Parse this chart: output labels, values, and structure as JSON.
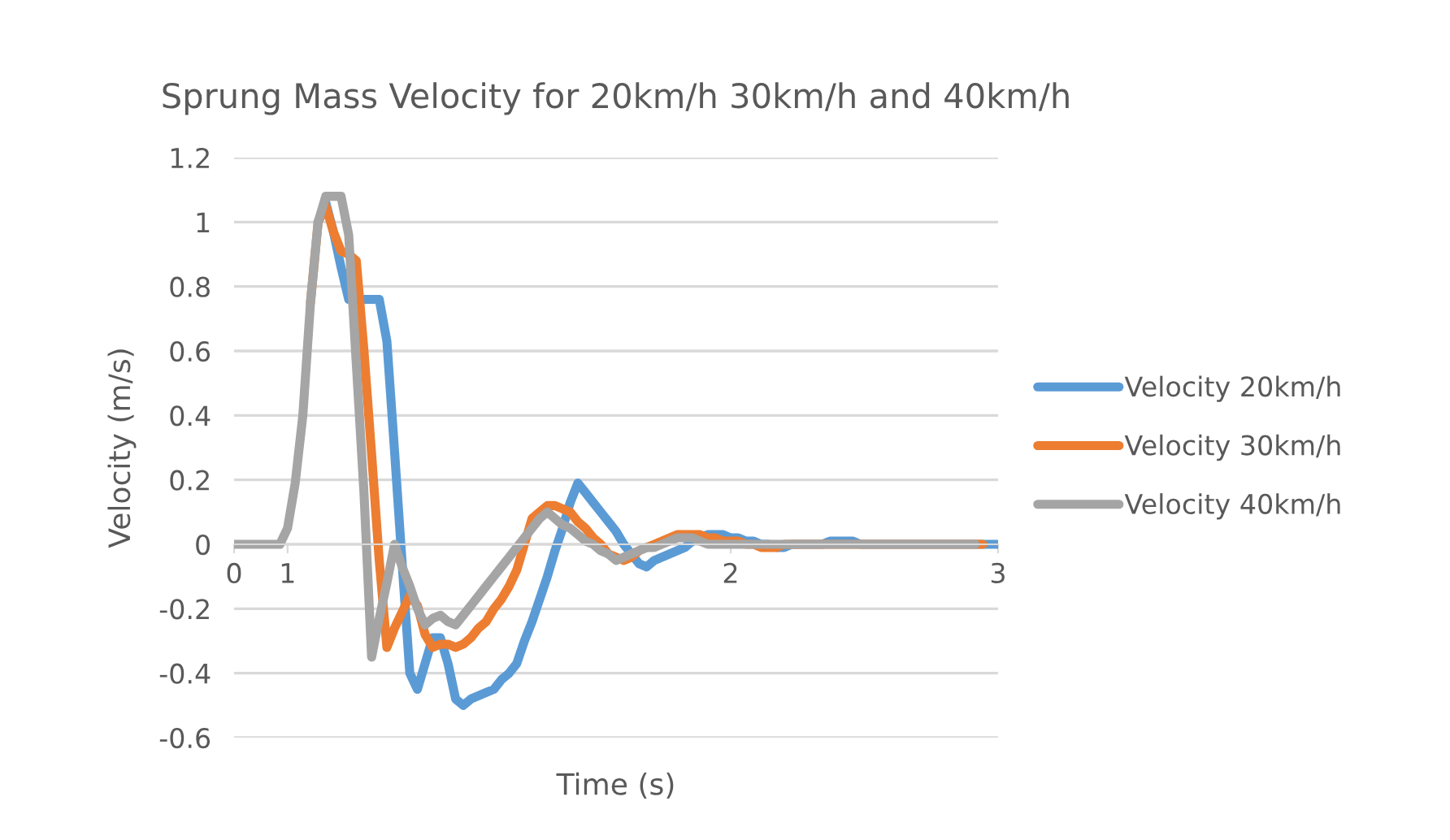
{
  "chart_data": {
    "type": "line",
    "title": "Sprung Mass Velocity for 20km/h 30km/h and 40km/h",
    "xlabel": "Time (s)",
    "ylabel": "Velocity (m/s)",
    "categories": [
      "0",
      null,
      null,
      null,
      null,
      null,
      null,
      "1",
      null,
      null,
      null,
      null,
      null,
      null,
      null,
      null,
      null,
      null,
      null,
      null,
      null,
      null,
      null,
      null,
      null,
      null,
      null,
      null,
      null,
      null,
      null,
      null,
      null,
      null,
      null,
      null,
      null,
      null,
      null,
      null,
      null,
      null,
      null,
      null,
      null,
      null,
      null,
      null,
      null,
      null,
      null,
      null,
      null,
      null,
      null,
      null,
      null,
      null,
      null,
      null,
      null,
      null,
      null,
      null,
      null,
      "2",
      null,
      null,
      null,
      null,
      null,
      null,
      null,
      null,
      null,
      null,
      null,
      null,
      null,
      null,
      null,
      null,
      null,
      null,
      null,
      null,
      null,
      null,
      null,
      null,
      null,
      null,
      null,
      null,
      null,
      null,
      null,
      null,
      null,
      null,
      "3"
    ],
    "ylim": [
      -0.6,
      1.2
    ],
    "yticks": [
      -0.6,
      -0.4,
      -0.2,
      0,
      0.2,
      0.4,
      0.6,
      0.8,
      1,
      1.2
    ],
    "grid": "y",
    "legend": "right",
    "marker": "none",
    "line_style": "solid",
    "series": [
      {
        "name": "Velocity 20km/h",
        "color": "#5b9bd5",
        "values": [
          null,
          null,
          null,
          null,
          null,
          null,
          null,
          null,
          null,
          null,
          null,
          1.0,
          1.06,
          0.97,
          0.86,
          0.76,
          0.76,
          0.76,
          0.76,
          0.76,
          0.63,
          0.29,
          -0.06,
          -0.4,
          -0.45,
          -0.37,
          -0.29,
          -0.29,
          -0.37,
          -0.48,
          -0.5,
          -0.48,
          -0.47,
          -0.46,
          -0.45,
          -0.42,
          -0.4,
          -0.37,
          -0.3,
          -0.24,
          -0.17,
          -0.1,
          -0.02,
          0.05,
          0.13,
          0.19,
          0.16,
          0.13,
          0.1,
          0.07,
          0.04,
          0,
          -0.03,
          -0.06,
          -0.07,
          -0.05,
          -0.04,
          -0.03,
          -0.02,
          -0.01,
          0.01,
          0.02,
          0.03,
          0.03,
          0.03,
          0.02,
          0.02,
          0.01,
          0.01,
          0,
          0,
          -0.01,
          -0.01,
          0,
          0,
          0,
          0,
          0,
          0.01,
          0.01,
          0.01,
          0.01,
          0,
          0,
          0,
          0,
          0,
          0,
          0,
          0,
          0,
          0,
          0,
          0,
          0,
          0,
          0,
          0,
          0,
          0,
          0
        ]
      },
      {
        "name": "Velocity 30km/h",
        "color": "#ed7d31",
        "values": [
          null,
          null,
          null,
          null,
          null,
          null,
          null,
          null,
          null,
          null,
          0.75,
          1.0,
          1.05,
          0.97,
          0.91,
          0.9,
          0.88,
          0.6,
          0.28,
          -0.05,
          -0.32,
          -0.26,
          -0.21,
          -0.16,
          -0.19,
          -0.28,
          -0.32,
          -0.31,
          -0.31,
          -0.32,
          -0.31,
          -0.29,
          -0.26,
          -0.24,
          -0.2,
          -0.17,
          -0.13,
          -0.08,
          0,
          0.08,
          0.1,
          0.12,
          0.12,
          0.11,
          0.1,
          0.07,
          0.05,
          0.02,
          0,
          -0.03,
          -0.04,
          -0.05,
          -0.04,
          -0.02,
          -0.01,
          0,
          0.01,
          0.02,
          0.03,
          0.03,
          0.03,
          0.03,
          0.02,
          0.02,
          0.01,
          0.01,
          0.01,
          0,
          0,
          -0.01,
          -0.01,
          -0.01,
          0,
          0,
          0,
          0,
          0,
          0,
          0,
          0,
          0,
          0,
          0,
          0,
          0,
          0,
          0,
          0,
          0,
          0,
          0,
          0,
          0,
          0,
          0,
          0,
          0,
          0,
          0,
          null,
          null
        ]
      },
      {
        "name": "Velocity 40km/h",
        "color": "#a5a5a5",
        "values": [
          0,
          0,
          0,
          0,
          0,
          0,
          0,
          0.05,
          0.19,
          0.4,
          0.75,
          1.0,
          1.08,
          1.08,
          1.08,
          0.96,
          0.56,
          0.16,
          -0.35,
          -0.23,
          -0.12,
          0,
          -0.07,
          -0.13,
          -0.2,
          -0.25,
          -0.23,
          -0.22,
          -0.24,
          -0.25,
          -0.22,
          -0.19,
          -0.16,
          -0.13,
          -0.1,
          -0.07,
          -0.04,
          -0.01,
          0.02,
          0.05,
          0.08,
          0.1,
          0.08,
          0.06,
          0.05,
          0.03,
          0.01,
          0,
          -0.02,
          -0.03,
          -0.05,
          -0.04,
          -0.03,
          -0.02,
          -0.01,
          -0.01,
          0,
          0.01,
          0.02,
          0.02,
          0.02,
          0.01,
          0,
          0,
          0,
          0,
          0,
          0,
          0,
          0,
          0,
          0,
          0,
          0,
          0,
          0,
          0,
          0,
          0,
          0,
          0,
          0,
          0,
          0,
          0,
          0,
          0,
          0,
          0,
          0,
          0,
          0,
          0,
          0,
          0,
          0,
          0,
          0,
          null,
          null,
          null
        ]
      }
    ]
  }
}
